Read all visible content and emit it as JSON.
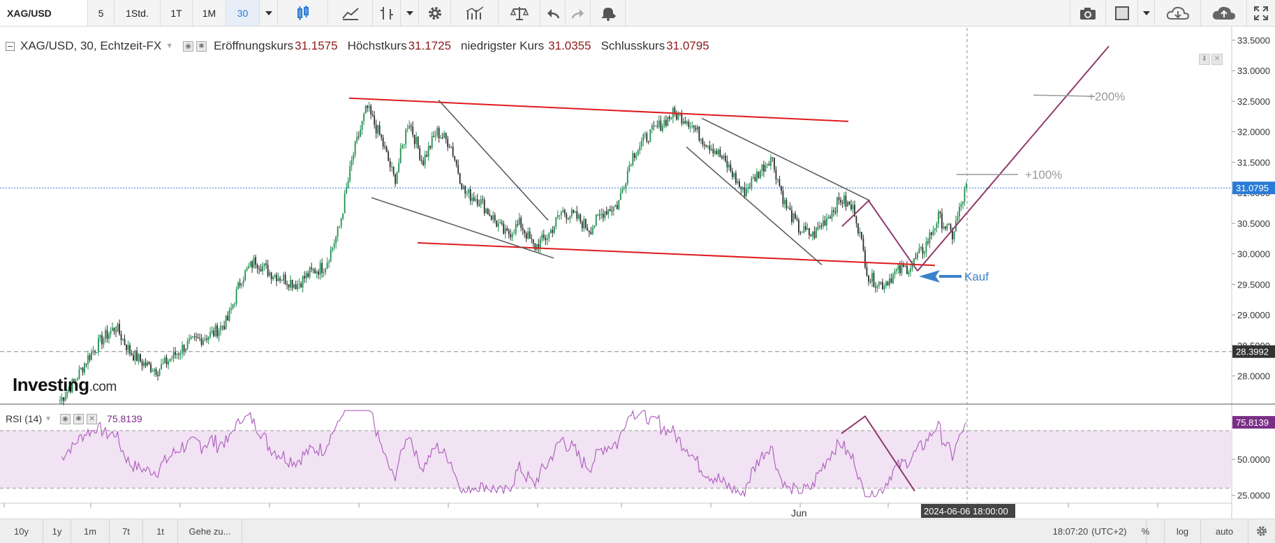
{
  "toolbar": {
    "symbol": "XAG/USD",
    "timeframes": [
      "5",
      "1Std.",
      "1T",
      "1M",
      "30"
    ],
    "active_timeframe": "30",
    "icons": [
      "dropdown-icon",
      "candlestick-icon",
      "line-chart-icon",
      "bar-chart-icon",
      "dropdown-icon",
      "gear-icon",
      "indicators-icon",
      "scale-icon",
      "undo-icon",
      "redo-icon",
      "alert-bell-icon",
      "camera-icon",
      "layout-icon",
      "dropdown-icon",
      "cloud-download-icon",
      "cloud-upload-icon",
      "fullscreen-icon"
    ]
  },
  "legend": {
    "title": "XAG/USD, 30, Echtzeit-FX",
    "open_label": "Eröffnungskurs",
    "open_value": "31.1575",
    "high_label": "Höchstkurs",
    "high_value": "31.1725",
    "low_label": "niedrigster Kurs",
    "low_value": "31.0355",
    "close_label": "Schlusskurs",
    "close_value": "31.0795"
  },
  "rsi_legend": {
    "label": "RSI (14)",
    "value": "75.8139"
  },
  "logo": {
    "main": "Investing",
    "suffix": ".com"
  },
  "annotations": {
    "plus100": "+100%",
    "plus200": "+200%",
    "buy": "Kauf"
  },
  "price_badges": {
    "last": "31.0795",
    "dashed_level": "28.3992",
    "rsi_last": "75.8139"
  },
  "crosshair_date": "2024-06-06 18:00:00",
  "bottom_bar": {
    "ranges": [
      "10y",
      "1y",
      "1m",
      "7t",
      "1t"
    ],
    "goto": "Gehe zu...",
    "time": "18:07:20",
    "timezone": "(UTC+2)",
    "percent": "%",
    "log": "log",
    "auto": "auto"
  },
  "colors": {
    "up": "#1e8f4e",
    "down": "#2c2c2c",
    "trend_red": "#e01b1b",
    "trend_gray": "#555555",
    "projection": "#8e3a6b",
    "kauf_arrow": "#3c82c8",
    "rsi_line": "#b163c0",
    "rsi_band": "#f1e3f3",
    "price_badge": "#2a7bd6"
  },
  "chart_data": [
    {
      "type": "candlestick",
      "symbol": "XAG/USD",
      "interval": "30",
      "y_ticks": [
        28.0,
        28.5,
        29.0,
        29.5,
        30.0,
        30.5,
        31.0,
        31.5,
        32.0,
        32.5,
        33.0,
        33.5
      ],
      "y_tick_labels": [
        "28.0000",
        "28.5000",
        "29.0000",
        "29.5000",
        "30.0000",
        "30.5000",
        "31.0000",
        "31.5000",
        "32.0000",
        "32.5000",
        "33.0000",
        "33.5000"
      ],
      "ylim": [
        27.55,
        33.7
      ],
      "x_labels": [
        "Jun"
      ],
      "approx_closes": [
        27.6,
        27.9,
        28.3,
        28.6,
        28.8,
        28.4,
        28.2,
        28.1,
        28.3,
        28.5,
        28.6,
        28.7,
        28.9,
        29.6,
        29.9,
        29.7,
        29.6,
        29.5,
        29.7,
        29.8,
        30.4,
        31.6,
        32.4,
        31.9,
        31.2,
        32.2,
        31.5,
        32.0,
        31.8,
        31.0,
        30.9,
        30.6,
        30.3,
        30.5,
        30.1,
        30.3,
        30.7,
        30.6,
        30.4,
        30.7,
        30.8,
        31.6,
        31.9,
        32.1,
        32.3,
        32.2,
        31.9,
        31.7,
        31.4,
        31.0,
        31.3,
        31.6,
        30.8,
        30.4,
        30.3,
        30.6,
        30.9,
        30.7,
        29.6,
        29.5,
        29.7,
        29.8,
        30.1,
        30.6,
        30.3,
        31.1
      ]
    },
    {
      "type": "line",
      "name": "RSI (14)",
      "ylim": [
        20,
        88
      ],
      "y_ticks": [
        25,
        50,
        75
      ],
      "y_tick_labels": [
        "25.0000",
        "50.0000",
        "75.0000"
      ],
      "bands": [
        30,
        70
      ],
      "last": 75.8139
    }
  ]
}
